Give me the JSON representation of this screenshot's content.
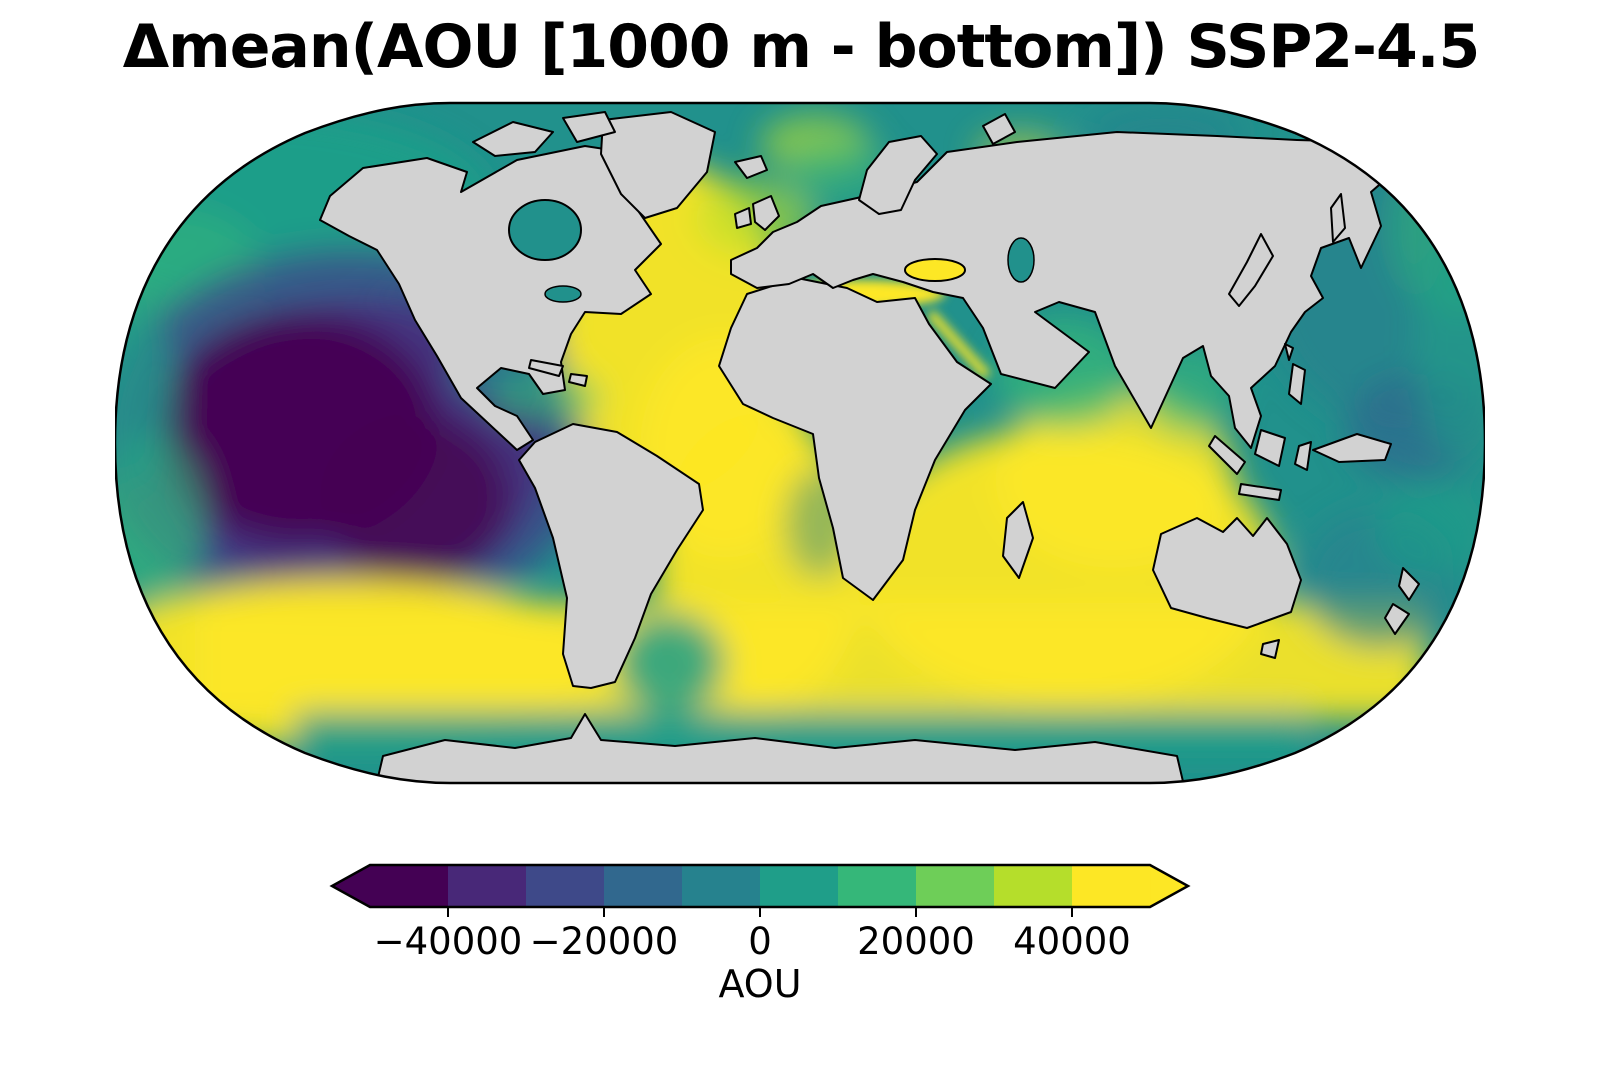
{
  "figure_title": "Δmean(AOU [1000 m - bottom]) SSP2-4.5",
  "colors": {
    "land": "#d2d2d2",
    "coastline": "#000000",
    "ocean-base": "#21918c",
    "v0": "#440154",
    "v1": "#482878",
    "v2": "#3e4989",
    "v3": "#31688e",
    "v4": "#26828e",
    "v5": "#1f9e89",
    "v6": "#35b779",
    "v7": "#6ece58",
    "v8": "#b5de2b",
    "v9": "#fde725"
  },
  "chart_data": {
    "type": "heatmap",
    "title": "Δmean(AOU [1000 m - bottom]) SSP2-4.5",
    "projection": "Robinson world map",
    "variable": "Δmean(AOU) over 1000 m - bottom layer",
    "scenario": "SSP2-4.5",
    "land_color": "#d2d2d2",
    "colorbar": {
      "label": "AOU",
      "colormap": "viridis",
      "range": [
        -50000,
        50000
      ],
      "ticks": [
        -40000,
        -20000,
        0,
        20000,
        40000
      ],
      "tick_labels": [
        "−40000",
        "−20000",
        "0",
        "20000",
        "40000"
      ],
      "n_segments": 10,
      "boundaries": [
        -50000,
        -40000,
        -30000,
        -20000,
        -10000,
        0,
        10000,
        20000,
        30000,
        40000,
        50000
      ],
      "segment_colors": [
        "#440154",
        "#482878",
        "#3e4989",
        "#31688e",
        "#26828e",
        "#1f9e89",
        "#35b779",
        "#6ece58",
        "#b5de2b",
        "#fde725"
      ],
      "extend": "both",
      "orientation": "horizontal"
    },
    "regions": [
      {
        "region": "Eastern tropical/subtropical Pacific",
        "approx_value": -50000
      },
      {
        "region": "Central North Pacific gyre",
        "approx_value": -25000
      },
      {
        "region": "Northwest Pacific and Bering Sea",
        "approx_value": 0
      },
      {
        "region": "North Atlantic",
        "approx_value": 50000
      },
      {
        "region": "South Atlantic",
        "approx_value": 40000
      },
      {
        "region": "Indian Ocean",
        "approx_value": 45000
      },
      {
        "region": "Southern Ocean mid-latitude band",
        "approx_value": 50000
      },
      {
        "region": "Antarctic coastal waters",
        "approx_value": 0
      },
      {
        "region": "Arctic Ocean",
        "approx_value": 10000
      },
      {
        "region": "Mediterranean Sea",
        "approx_value": 50000
      },
      {
        "region": "Sea of Japan",
        "approx_value": 45000
      },
      {
        "region": "Tasman and Coral Seas",
        "approx_value": 5000
      },
      {
        "region": "Gulf of Mexico / Caribbean",
        "approx_value": 0
      }
    ]
  }
}
